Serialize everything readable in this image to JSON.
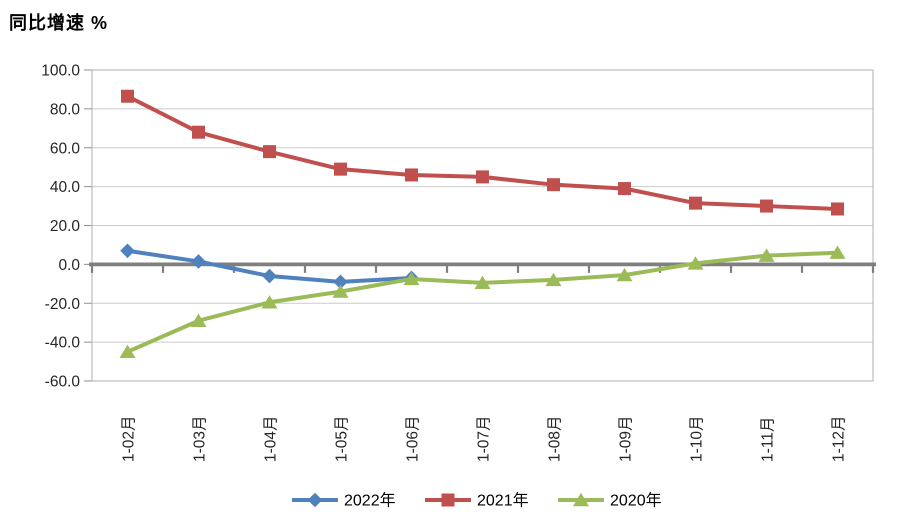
{
  "page": {
    "background": "#FFFFFF"
  },
  "chart_data": {
    "type": "line",
    "title": "同比增速 %",
    "categories": [
      "1-02月",
      "1-03月",
      "1-04月",
      "1-05月",
      "1-06月",
      "1-07月",
      "1-08月",
      "1-09月",
      "1-10月",
      "1-11月",
      "1-12月"
    ],
    "series": [
      {
        "name": "2022年",
        "color": "#4F81BD",
        "marker": "diamond",
        "values": [
          7.0,
          1.5,
          -6.0,
          -9.0,
          -7.0
        ]
      },
      {
        "name": "2021年",
        "color": "#C0504D",
        "marker": "square",
        "values": [
          86.5,
          68.0,
          58.0,
          49.0,
          46.0,
          45.0,
          41.0,
          39.0,
          31.5,
          30.0,
          28.5
        ]
      },
      {
        "name": "2020年",
        "color": "#9BBB59",
        "marker": "triangle",
        "values": [
          -45.0,
          -29.0,
          -19.5,
          -14.0,
          -7.5,
          -9.5,
          -8.0,
          -5.5,
          0.5,
          4.5,
          6.0
        ]
      }
    ],
    "xlabel": "",
    "ylabel": "",
    "ylim": [
      -60,
      100
    ],
    "ytick_step": 20,
    "ytick_labels": [
      "100.0",
      "80.0",
      "60.0",
      "40.0",
      "20.0",
      "0.0",
      "-20.0",
      "-40.0",
      "-60.0"
    ],
    "grid": true,
    "legend_position": "bottom",
    "colors": {
      "grid": "#CBCBCB",
      "plot_border": "#AFAFAF",
      "zero_axis": "#7F7F7F",
      "tick": "#8F8F8F",
      "axis_text": "#262626",
      "title_text": "#000000"
    }
  }
}
